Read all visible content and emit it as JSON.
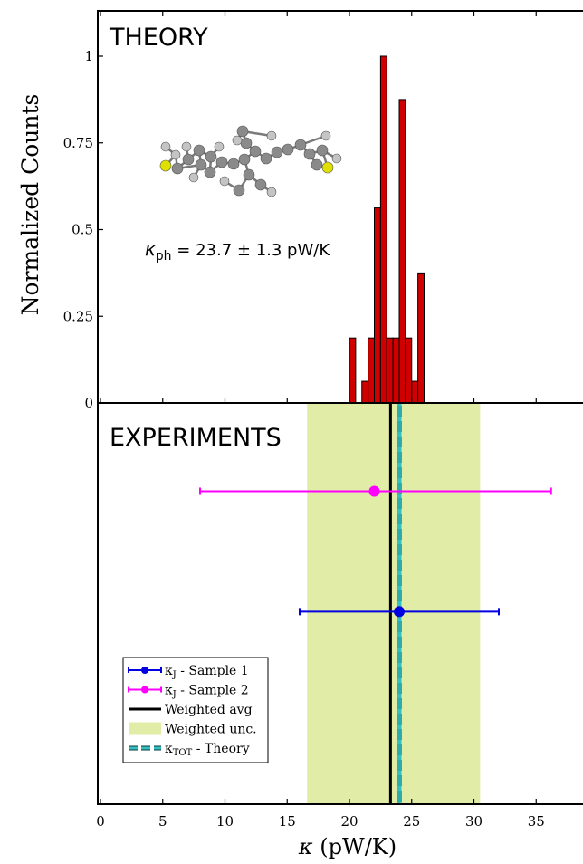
{
  "chart_data": [
    {
      "panel": "top",
      "type": "bar",
      "title": "THEORY",
      "ylabel": "Normalized Counts",
      "xlim": [
        0,
        37
      ],
      "ylim": [
        0,
        1.1
      ],
      "yticks": [
        0,
        0.25,
        0.5,
        0.75,
        1
      ],
      "yticklabels": [
        "0",
        "0.25",
        "0.5",
        "0.75",
        "1"
      ],
      "bin_width": 0.5,
      "bins": [
        {
          "x": 20.0,
          "value": 0.1875
        },
        {
          "x": 21.0,
          "value": 0.0625
        },
        {
          "x": 21.5,
          "value": 0.1875
        },
        {
          "x": 22.0,
          "value": 0.5625
        },
        {
          "x": 22.5,
          "value": 1.0
        },
        {
          "x": 23.0,
          "value": 0.1875
        },
        {
          "x": 23.5,
          "value": 0.1875
        },
        {
          "x": 24.0,
          "value": 0.875
        },
        {
          "x": 24.5,
          "value": 0.1875
        },
        {
          "x": 25.0,
          "value": 0.0625
        },
        {
          "x": 25.5,
          "value": 0.375
        }
      ],
      "bar_color": "#d00000",
      "annotation": {
        "symbol": "κ",
        "subscript": "ph",
        "text": " = 23.7 ± 1.3 pW/K"
      }
    },
    {
      "panel": "bottom",
      "type": "scatter",
      "title": "EXPERIMENTS",
      "xlabel": "κ (pW/K)",
      "xlim": [
        0,
        37
      ],
      "xticks": [
        0,
        5,
        10,
        15,
        20,
        25,
        30,
        35
      ],
      "xticklabels": [
        "0",
        "5",
        "10",
        "15",
        "20",
        "25",
        "30",
        "35"
      ],
      "points": [
        {
          "name": "κJ - Sample 1",
          "x": 24.0,
          "xerr_low": 16.0,
          "xerr_high": 32.0,
          "color": "#0000e0",
          "level": 0.48
        },
        {
          "name": "κJ - Sample 2",
          "x": 22.0,
          "xerr_low": 8.0,
          "xerr_high": 36.2,
          "color": "#ff00ff",
          "level": 0.78
        }
      ],
      "weighted_avg": 23.3,
      "weighted_unc": [
        16.6,
        30.5
      ],
      "theory_total": 24.0,
      "colors": {
        "avg": "#000000",
        "unc": "#e1eca6",
        "theory_fill": "#35c0c0",
        "theory_dash": "#0a3a3a"
      },
      "legend": {
        "placement": "bottom-left",
        "entries": [
          {
            "symbol": "κ",
            "sub": "J",
            "label": " - Sample 1",
            "kind": "errorbar",
            "color": "#0000e0"
          },
          {
            "symbol": "κ",
            "sub": "J",
            "label": " - Sample 2",
            "kind": "errorbar",
            "color": "#ff00ff"
          },
          {
            "symbol": "",
            "sub": "",
            "label": "Weighted avg",
            "kind": "line",
            "color": "#000000"
          },
          {
            "symbol": "",
            "sub": "",
            "label": "Weighted unc.",
            "kind": "patch",
            "color": "#e1eca6"
          },
          {
            "symbol": "κ",
            "sub": "TOT",
            "label": " - Theory",
            "kind": "dashed",
            "color": "#35c0c0"
          }
        ]
      }
    }
  ]
}
